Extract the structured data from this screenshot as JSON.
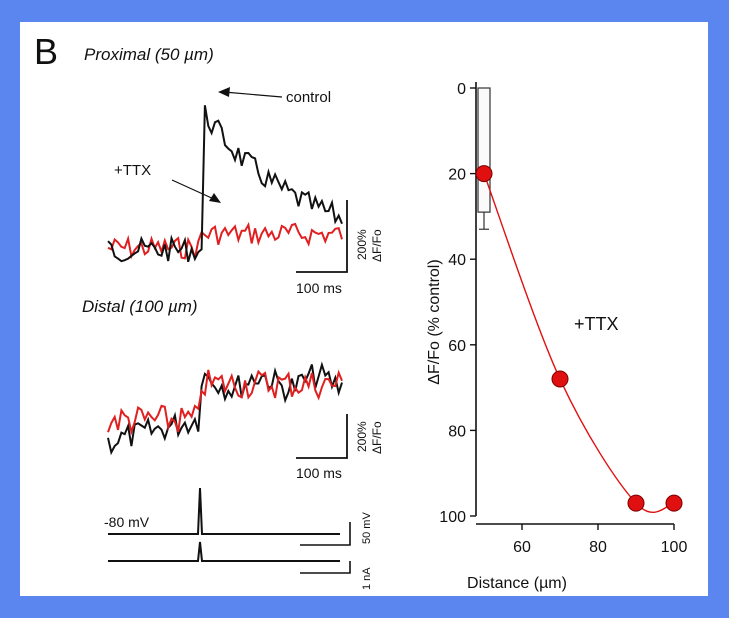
{
  "panel_label": "B",
  "traces": {
    "proximal_title": "Proximal (50 µm)",
    "distal_title": "Distal (100 µm)",
    "control_label": "control",
    "ttx_label": "+TTX",
    "scale_y_value": "200%",
    "scale_y_unit": "ΔF/Fo",
    "scale_x": "100 ms",
    "holding_potential": "-80 mV",
    "voltage_scale": "50 mV",
    "current_scale": "1 nA",
    "colors": {
      "control": "#111111",
      "ttx": "#e02020"
    }
  },
  "chart_data": {
    "type": "scatter",
    "xlabel": "Distance  (µm)",
    "ylabel": "ΔF/Fo (% control)",
    "xlim": [
      50,
      100
    ],
    "ylim": [
      0,
      100
    ],
    "y_inverted": true,
    "x_ticks": [
      60,
      80,
      100
    ],
    "y_ticks": [
      0,
      20,
      40,
      60,
      80,
      100
    ],
    "annotation": "+TTX",
    "series": [
      {
        "x": [
          50,
          70,
          90,
          100
        ],
        "y": [
          20,
          68,
          97,
          97
        ],
        "color": "#e01010",
        "fit_line": true
      }
    ],
    "bar": {
      "x": 50,
      "from": 0,
      "to": 29,
      "error_to": 33
    }
  }
}
